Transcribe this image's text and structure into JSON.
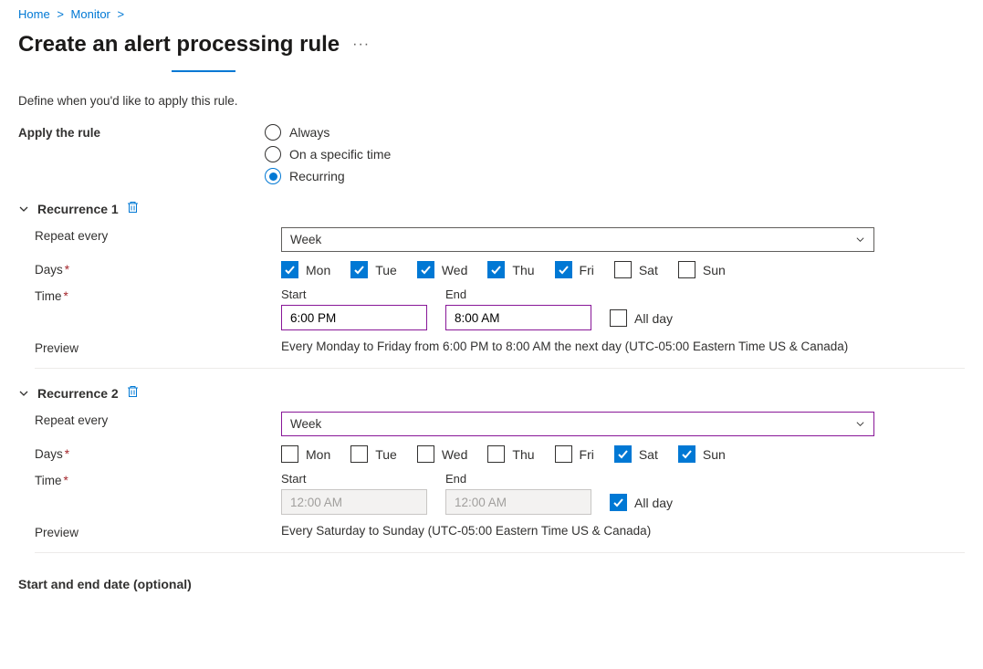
{
  "breadcrumb": {
    "home": "Home",
    "monitor": "Monitor"
  },
  "page_title": "Create an alert processing rule",
  "define_text": "Define when you'd like to apply this rule.",
  "apply_label": "Apply the rule",
  "radios": {
    "always": "Always",
    "specific": "On a specific time",
    "recurring": "Recurring"
  },
  "labels": {
    "repeat": "Repeat every",
    "days": "Days",
    "time": "Time",
    "preview": "Preview",
    "start": "Start",
    "end": "End",
    "allday": "All day"
  },
  "day_names": {
    "mon": "Mon",
    "tue": "Tue",
    "wed": "Wed",
    "thu": "Thu",
    "fri": "Fri",
    "sat": "Sat",
    "sun": "Sun"
  },
  "rec1": {
    "title": "Recurrence 1",
    "repeat_value": "Week",
    "days": {
      "mon": true,
      "tue": true,
      "wed": true,
      "thu": true,
      "fri": true,
      "sat": false,
      "sun": false
    },
    "start": "6:00 PM",
    "end": "8:00 AM",
    "allday": false,
    "preview": "Every Monday to Friday from 6:00 PM to 8:00 AM the next day (UTC-05:00 Eastern Time US & Canada)"
  },
  "rec2": {
    "title": "Recurrence 2",
    "repeat_value": "Week",
    "days": {
      "mon": false,
      "tue": false,
      "wed": false,
      "thu": false,
      "fri": false,
      "sat": true,
      "sun": true
    },
    "start": "12:00 AM",
    "end": "12:00 AM",
    "allday": true,
    "preview": "Every Saturday to Sunday (UTC-05:00 Eastern Time US & Canada)"
  },
  "bottom_section": "Start and end date (optional)"
}
